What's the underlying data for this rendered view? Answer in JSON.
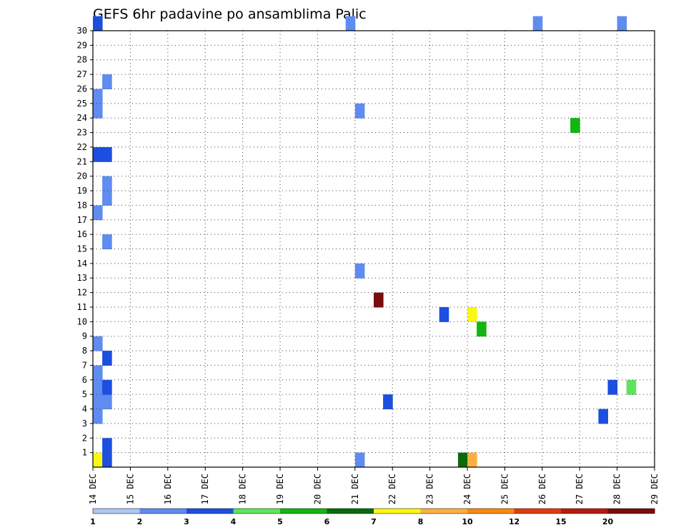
{
  "chart_data": {
    "type": "heatmap",
    "title": "GEFS 6hr padavine po ansamblima Palic",
    "xlabel": "",
    "ylabel": "",
    "x_tick_labels": [
      "14 DEC",
      "15 DEC",
      "16 DEC",
      "17 DEC",
      "18 DEC",
      "19 DEC",
      "20 DEC",
      "21 DEC",
      "22 DEC",
      "23 DEC",
      "24 DEC",
      "25 DEC",
      "26 DEC",
      "27 DEC",
      "28 DEC",
      "29 DEC"
    ],
    "y_tick_labels": [
      "1",
      "2",
      "3",
      "4",
      "5",
      "6",
      "7",
      "8",
      "9",
      "10",
      "11",
      "12",
      "13",
      "14",
      "15",
      "16",
      "17",
      "18",
      "19",
      "20",
      "21",
      "22",
      "23",
      "24",
      "25",
      "26",
      "27",
      "28",
      "29",
      "30"
    ],
    "x_range_steps": [
      0,
      60
    ],
    "steps_per_day": 4,
    "y_range": [
      0,
      30
    ],
    "grid": true,
    "legend_position": "bottom",
    "colorbar": {
      "labels": [
        "1",
        "2",
        "3",
        "4",
        "5",
        "6",
        "7",
        "8",
        "10",
        "12",
        "15",
        "20"
      ],
      "colors": [
        "#aec6f4",
        "#5e8cf0",
        "#1c4fdf",
        "#5fe35f",
        "#12b612",
        "#0a6a0a",
        "#f8f814",
        "#fbb040",
        "#f78a12",
        "#e03a10",
        "#b51c10",
        "#7a0c0c"
      ]
    },
    "cells": [
      {
        "step": 0,
        "member": 0,
        "cls": 6
      },
      {
        "step": 1,
        "member": 0,
        "cls": 2
      },
      {
        "step": 1,
        "member": 1,
        "cls": 2
      },
      {
        "step": 28,
        "member": 0,
        "cls": 1
      },
      {
        "step": 39,
        "member": 0,
        "cls": 5
      },
      {
        "step": 40,
        "member": 0,
        "cls": 7
      },
      {
        "step": 0,
        "member": 3,
        "cls": 1
      },
      {
        "step": 0,
        "member": 4,
        "cls": 1
      },
      {
        "step": 1,
        "member": 4,
        "cls": 1
      },
      {
        "step": 0,
        "member": 5,
        "cls": 1
      },
      {
        "step": 1,
        "member": 5,
        "cls": 2
      },
      {
        "step": 0,
        "member": 6,
        "cls": 1
      },
      {
        "step": 0,
        "member": 8,
        "cls": 1
      },
      {
        "step": 1,
        "member": 7,
        "cls": 2
      },
      {
        "step": 0,
        "member": 17,
        "cls": 1
      },
      {
        "step": 1,
        "member": 15,
        "cls": 1
      },
      {
        "step": 1,
        "member": 18,
        "cls": 1
      },
      {
        "step": 1,
        "member": 19,
        "cls": 1
      },
      {
        "step": 1,
        "member": 26,
        "cls": 1
      },
      {
        "step": 0,
        "member": 25,
        "cls": 1
      },
      {
        "step": 0,
        "member": 24,
        "cls": 1
      },
      {
        "step": 0,
        "member": 21,
        "cls": 2
      },
      {
        "step": 1,
        "member": 21,
        "cls": 2
      },
      {
        "step": 0,
        "member": 30,
        "cls": 2
      },
      {
        "step": 27,
        "member": 30,
        "cls": 1
      },
      {
        "step": 56,
        "member": 30,
        "cls": 1
      },
      {
        "step": 28,
        "member": 13,
        "cls": 1
      },
      {
        "step": 28,
        "member": 24,
        "cls": 1
      },
      {
        "step": 31,
        "member": 4,
        "cls": 2
      },
      {
        "step": 41,
        "member": 9,
        "cls": 4
      },
      {
        "step": 37,
        "member": 10,
        "cls": 2
      },
      {
        "step": 40,
        "member": 10,
        "cls": 6
      },
      {
        "step": 30,
        "member": 11,
        "cls": 11
      },
      {
        "step": 47,
        "member": 30,
        "cls": 1
      },
      {
        "step": 51,
        "member": 23,
        "cls": 4
      },
      {
        "step": 54,
        "member": 3,
        "cls": 2
      },
      {
        "step": 55,
        "member": 5,
        "cls": 2
      },
      {
        "step": 57,
        "member": 5,
        "cls": 3
      }
    ]
  }
}
